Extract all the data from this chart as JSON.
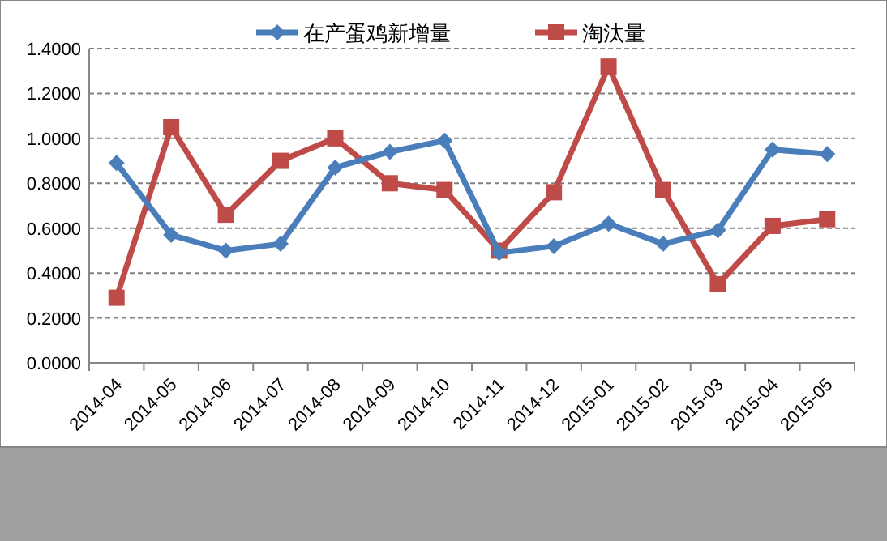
{
  "chart_data": {
    "type": "line",
    "categories": [
      "2014-04",
      "2014-05",
      "2014-06",
      "2014-07",
      "2014-08",
      "2014-09",
      "2014-10",
      "2014-11",
      "2014-12",
      "2015-01",
      "2015-02",
      "2015-03",
      "2015-04",
      "2015-05"
    ],
    "series": [
      {
        "name": "在产蛋鸡新增量",
        "color": "#4a7ebb",
        "marker": "diamond",
        "values": [
          0.89,
          0.57,
          0.5,
          0.53,
          0.87,
          0.94,
          0.99,
          0.49,
          0.52,
          0.62,
          0.53,
          0.59,
          0.95,
          0.93
        ]
      },
      {
        "name": "淘汰量",
        "color": "#be4b48",
        "marker": "square",
        "values": [
          0.29,
          1.05,
          0.66,
          0.9,
          1.0,
          0.8,
          0.77,
          0.5,
          0.76,
          1.32,
          0.77,
          0.35,
          0.61,
          0.64
        ]
      }
    ],
    "ylim": [
      0,
      1.4
    ],
    "yticks": [
      {
        "value": 0,
        "label": "0.0000"
      },
      {
        "value": 0.2,
        "label": "0.2000"
      },
      {
        "value": 0.4,
        "label": "0.4000"
      },
      {
        "value": 0.6,
        "label": "0.6000"
      },
      {
        "value": 0.8,
        "label": "0.8000"
      },
      {
        "value": 1,
        "label": "1.0000"
      },
      {
        "value": 1.2,
        "label": "1.2000"
      },
      {
        "value": 1.4,
        "label": "1.4000"
      }
    ],
    "grid": "y",
    "legend": "top",
    "line_style": "solid"
  }
}
